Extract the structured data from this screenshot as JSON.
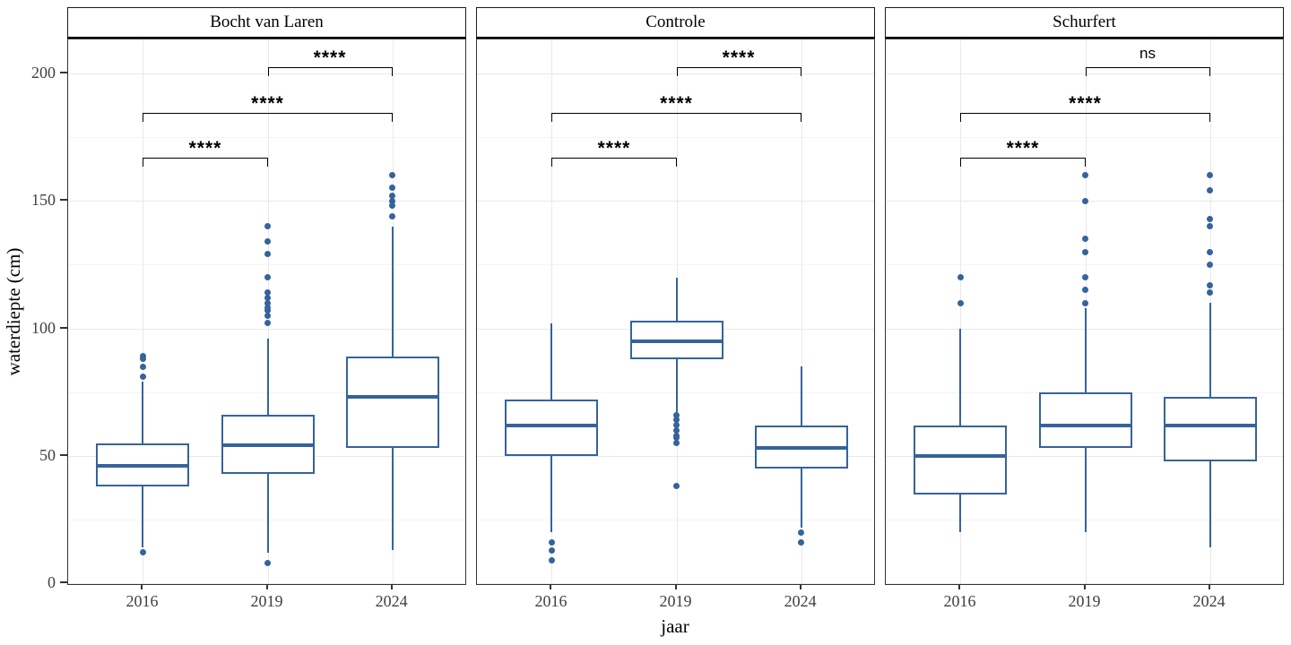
{
  "chart_data": {
    "type": "boxplot",
    "title": "",
    "xlabel": "jaar",
    "ylabel": "waterdiepte (cm)",
    "categories": [
      "2016",
      "2019",
      "2024"
    ],
    "yticks": [
      0,
      50,
      100,
      150,
      200
    ],
    "yminorticks": [
      25,
      75,
      125,
      175
    ],
    "ylim": [
      -1,
      213.3
    ],
    "grid": "on",
    "legend": "none",
    "colors": {
      "box_stroke": "#35639B",
      "outlier_fill": "#35639B",
      "bracket_line": "#000000",
      "panel_background": "#FFFFFF",
      "strip_background": "#FFFFFF"
    },
    "facets": [
      {
        "label": "Bocht van Laren",
        "boxes": [
          {
            "category": "2016",
            "whisker_low": 14,
            "q1": 38,
            "median": 46,
            "q3": 55,
            "whisker_high": 79,
            "outliers": [
              12,
              81,
              85,
              88,
              89
            ]
          },
          {
            "category": "2019",
            "whisker_low": 12,
            "q1": 43,
            "median": 54,
            "q3": 66,
            "whisker_high": 96,
            "outliers": [
              8,
              102,
              105,
              107,
              108,
              110,
              112,
              114,
              120,
              129,
              134,
              140
            ]
          },
          {
            "category": "2024",
            "whisker_low": 13,
            "q1": 53,
            "median": 73,
            "q3": 89,
            "whisker_high": 140,
            "outliers": [
              144,
              148,
              150,
              152,
              155,
              160
            ]
          }
        ],
        "brackets": [
          {
            "from": "2016",
            "to": "2019",
            "label": "****",
            "y": 167
          },
          {
            "from": "2016",
            "to": "2024",
            "label": "****",
            "y": 184.5
          },
          {
            "from": "2019",
            "to": "2024",
            "label": "****",
            "y": 202.5
          }
        ]
      },
      {
        "label": "Controle",
        "boxes": [
          {
            "category": "2016",
            "whisker_low": 20,
            "q1": 50,
            "median": 62,
            "q3": 72,
            "whisker_high": 102,
            "outliers": [
              16,
              13,
              9
            ]
          },
          {
            "category": "2019",
            "whisker_low": 67,
            "q1": 88,
            "median": 95,
            "q3": 103,
            "whisker_high": 120,
            "outliers": [
              66,
              64,
              62,
              60,
              58,
              57,
              55,
              38
            ]
          },
          {
            "category": "2024",
            "whisker_low": 22,
            "q1": 45,
            "median": 53,
            "q3": 62,
            "whisker_high": 85,
            "outliers": [
              20,
              16
            ]
          }
        ],
        "brackets": [
          {
            "from": "2016",
            "to": "2019",
            "label": "****",
            "y": 167
          },
          {
            "from": "2016",
            "to": "2024",
            "label": "****",
            "y": 184.5
          },
          {
            "from": "2019",
            "to": "2024",
            "label": "****",
            "y": 202.5
          }
        ]
      },
      {
        "label": "Schurfert",
        "boxes": [
          {
            "category": "2016",
            "whisker_low": 20,
            "q1": 35,
            "median": 50,
            "q3": 62,
            "whisker_high": 100,
            "outliers": [
              110,
              120
            ]
          },
          {
            "category": "2019",
            "whisker_low": 20,
            "q1": 53,
            "median": 62,
            "q3": 75,
            "whisker_high": 108,
            "outliers": [
              110,
              115,
              120,
              130,
              135,
              150,
              160
            ]
          },
          {
            "category": "2024",
            "whisker_low": 14,
            "q1": 48,
            "median": 62,
            "q3": 73,
            "whisker_high": 110,
            "outliers": [
              114,
              117,
              125,
              130,
              140,
              143,
              154,
              160
            ]
          }
        ],
        "brackets": [
          {
            "from": "2016",
            "to": "2019",
            "label": "****",
            "y": 167
          },
          {
            "from": "2016",
            "to": "2024",
            "label": "****",
            "y": 184.5
          },
          {
            "from": "2019",
            "to": "2024",
            "label": "ns",
            "y": 202.5
          }
        ]
      }
    ]
  }
}
